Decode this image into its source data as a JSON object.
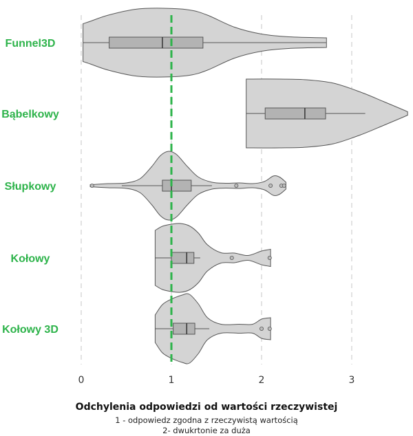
{
  "chart_data": {
    "type": "violin",
    "categories": [
      "Funnel3D",
      "Bąbelkowy",
      "Słupkowy",
      "Kołowy",
      "Kołowy 3D"
    ],
    "xlim": [
      -0.1,
      3.65
    ],
    "xticks": [
      0,
      1,
      2,
      3
    ],
    "xtick_labels": [
      "0",
      "1",
      "2",
      "3"
    ],
    "grid": "vertical dashed",
    "reference_line": {
      "x": 1,
      "style": "dashed",
      "color": "#2db34a"
    },
    "series": [
      {
        "category": "Funnel3D",
        "box": {
          "q1": 0.31,
          "median": 0.9,
          "q3": 1.35,
          "whisker_low": 0.02,
          "whisker_high": 2.72
        },
        "outliers": [],
        "violin": [
          [
            0.02,
            0.55
          ],
          [
            0.1,
            0.62
          ],
          [
            0.3,
            0.8
          ],
          [
            0.6,
            0.97
          ],
          [
            0.9,
            1.0
          ],
          [
            1.2,
            0.95
          ],
          [
            1.4,
            0.8
          ],
          [
            1.7,
            0.45
          ],
          [
            2.0,
            0.25
          ],
          [
            2.3,
            0.17
          ],
          [
            2.72,
            0.14
          ]
        ]
      },
      {
        "category": "Bąbelkowy",
        "box": {
          "q1": 2.04,
          "median": 2.48,
          "q3": 2.71,
          "whisker_low": 1.83,
          "whisker_high": 3.15
        },
        "outliers": [],
        "violin": [
          [
            1.83,
            1.0
          ],
          [
            2.2,
            1.0
          ],
          [
            2.5,
            0.98
          ],
          [
            2.8,
            0.88
          ],
          [
            3.1,
            0.62
          ],
          [
            3.35,
            0.35
          ],
          [
            3.55,
            0.13
          ],
          [
            3.62,
            0.05
          ]
        ]
      },
      {
        "category": "Słupkowy",
        "box": {
          "q1": 0.9,
          "median": 1.0,
          "q3": 1.22,
          "whisker_low": 0.45,
          "whisker_high": 1.45
        },
        "outliers": [
          0.12,
          1.72,
          2.1,
          2.22,
          2.25
        ],
        "violin": [
          [
            0.1,
            0.03
          ],
          [
            0.3,
            0.06
          ],
          [
            0.5,
            0.08
          ],
          [
            0.65,
            0.2
          ],
          [
            0.78,
            0.55
          ],
          [
            0.88,
            0.88
          ],
          [
            0.97,
            1.0
          ],
          [
            1.06,
            0.9
          ],
          [
            1.18,
            0.55
          ],
          [
            1.3,
            0.25
          ],
          [
            1.45,
            0.1
          ],
          [
            1.6,
            0.07
          ],
          [
            1.75,
            0.08
          ],
          [
            1.9,
            0.06
          ],
          [
            2.03,
            0.12
          ],
          [
            2.13,
            0.28
          ],
          [
            2.2,
            0.25
          ],
          [
            2.27,
            0.1
          ]
        ]
      },
      {
        "category": "Kołowy",
        "box": {
          "q1": 1.0,
          "median": 1.17,
          "q3": 1.25,
          "whisker_low": 0.82,
          "whisker_high": 1.32
        },
        "outliers": [
          1.67,
          2.09
        ],
        "violin": [
          [
            0.82,
            0.8
          ],
          [
            0.9,
            0.92
          ],
          [
            1.0,
            0.98
          ],
          [
            1.1,
            1.0
          ],
          [
            1.2,
            0.93
          ],
          [
            1.3,
            0.72
          ],
          [
            1.4,
            0.38
          ],
          [
            1.55,
            0.15
          ],
          [
            1.7,
            0.14
          ],
          [
            1.85,
            0.07
          ],
          [
            2.0,
            0.2
          ],
          [
            2.1,
            0.25
          ]
        ]
      },
      {
        "category": "Kołowy 3D",
        "box": {
          "q1": 1.02,
          "median": 1.17,
          "q3": 1.26,
          "whisker_low": 0.82,
          "whisker_high": 1.42
        },
        "outliers": [
          2.0,
          2.09
        ],
        "violin": [
          [
            0.82,
            0.4
          ],
          [
            0.9,
            0.7
          ],
          [
            1.0,
            0.86
          ],
          [
            1.12,
            0.98
          ],
          [
            1.2,
            1.0
          ],
          [
            1.3,
            0.72
          ],
          [
            1.4,
            0.32
          ],
          [
            1.55,
            0.13
          ],
          [
            1.75,
            0.13
          ],
          [
            1.9,
            0.13
          ],
          [
            2.0,
            0.28
          ],
          [
            2.1,
            0.32
          ]
        ]
      }
    ]
  },
  "xlabel": "Odchylenia odpowiedzi od wartości rzeczywistej",
  "caption_lines": [
    "1 - odpowiedz zgodna z rzeczywistą wartością",
    "2- dwukrtonie za duża"
  ],
  "colors": {
    "accent": "#2db34a",
    "violin_fill": "#d4d4d4",
    "box_fill": "#b3b3b3",
    "stroke": "#555555",
    "grid": "#d8d8d8"
  }
}
